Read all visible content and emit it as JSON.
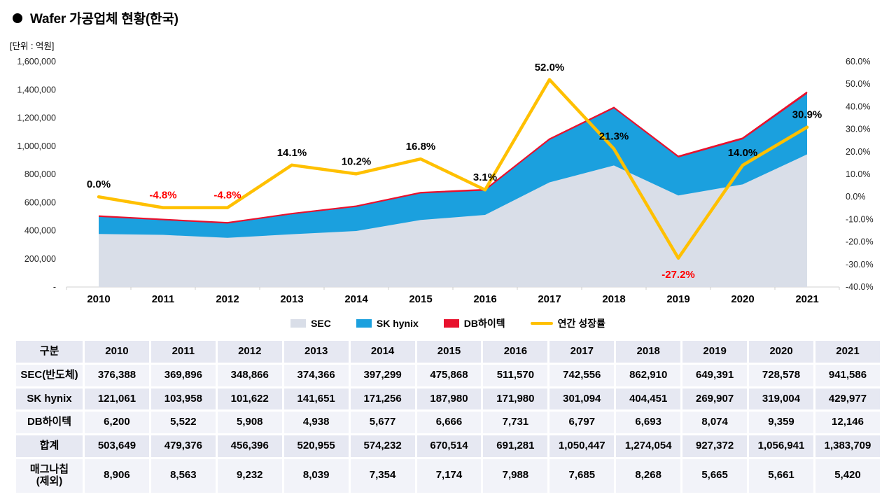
{
  "title": "Wafer 가공업체 현황(한국)",
  "unit_label": "[단위 : 억원]",
  "chart_data": {
    "type": "combo-stacked-area-line",
    "categories": [
      "2010",
      "2011",
      "2012",
      "2013",
      "2014",
      "2015",
      "2016",
      "2017",
      "2018",
      "2019",
      "2020",
      "2021"
    ],
    "area_series": [
      {
        "name": "SEC",
        "color": "#d9dee8",
        "values": [
          376388,
          369896,
          348866,
          374366,
          397299,
          475868,
          511570,
          742556,
          862910,
          649391,
          728578,
          941586
        ]
      },
      {
        "name": "SK hynix",
        "color": "#1ba0de",
        "values": [
          121061,
          103958,
          101622,
          141651,
          171256,
          187980,
          171980,
          301094,
          404451,
          269907,
          319004,
          429977
        ]
      },
      {
        "name": "DB하이텍",
        "color": "#e8112d",
        "values": [
          6200,
          5522,
          5908,
          4938,
          5677,
          6666,
          7731,
          6797,
          6693,
          8074,
          9359,
          12146
        ]
      }
    ],
    "line_series": {
      "name": "연간 성장률",
      "color": "#FFC000",
      "values": [
        0.0,
        -4.8,
        -4.8,
        14.1,
        10.2,
        16.8,
        3.1,
        52.0,
        21.3,
        -27.2,
        14.0,
        30.9
      ],
      "labels": [
        "0.0%",
        "-4.8%",
        "-4.8%",
        "14.1%",
        "10.2%",
        "16.8%",
        "3.1%",
        "52.0%",
        "21.3%",
        "-27.2%",
        "14.0%",
        "30.9%"
      ]
    },
    "left_axis": {
      "min": 0,
      "max": 1600000,
      "ticks": [
        "1,600,000",
        "1,400,000",
        "1,200,000",
        "1,000,000",
        "800,000",
        "600,000",
        "400,000",
        "200,000",
        "-"
      ]
    },
    "right_axis": {
      "min": -40,
      "max": 60,
      "ticks": [
        "60.0%",
        "50.0%",
        "40.0%",
        "30.0%",
        "20.0%",
        "10.0%",
        "0.0%",
        "-10.0%",
        "-20.0%",
        "-30.0%",
        "-40.0%"
      ]
    },
    "label_color": "#000000",
    "negative_label_color": "#ff0000",
    "grid": false,
    "legend_position": "bottom"
  },
  "legend": [
    {
      "label": "SEC",
      "color": "#d9dee8",
      "type": "box"
    },
    {
      "label": "SK hynix",
      "color": "#1ba0de",
      "type": "box"
    },
    {
      "label": "DB하이텍",
      "color": "#e8112d",
      "type": "box"
    },
    {
      "label": "연간 성장률",
      "color": "#FFC000",
      "type": "line"
    }
  ],
  "table": {
    "header": [
      "구분",
      "2010",
      "2011",
      "2012",
      "2013",
      "2014",
      "2015",
      "2016",
      "2017",
      "2018",
      "2019",
      "2020",
      "2021"
    ],
    "rows": [
      {
        "label": "SEC(반도체)",
        "values": [
          "376,388",
          "369,896",
          "348,866",
          "374,366",
          "397,299",
          "475,868",
          "511,570",
          "742,556",
          "862,910",
          "649,391",
          "728,578",
          "941,586"
        ]
      },
      {
        "label": "SK hynix",
        "values": [
          "121,061",
          "103,958",
          "101,622",
          "141,651",
          "171,256",
          "187,980",
          "171,980",
          "301,094",
          "404,451",
          "269,907",
          "319,004",
          "429,977"
        ]
      },
      {
        "label": "DB하이텍",
        "values": [
          "6,200",
          "5,522",
          "5,908",
          "4,938",
          "5,677",
          "6,666",
          "7,731",
          "6,797",
          "6,693",
          "8,074",
          "9,359",
          "12,146"
        ]
      },
      {
        "label": "합계",
        "values": [
          "503,649",
          "479,376",
          "456,396",
          "520,955",
          "574,232",
          "670,514",
          "691,281",
          "1,050,447",
          "1,274,054",
          "927,372",
          "1,056,941",
          "1,383,709"
        ]
      },
      {
        "label": "매그나칩\n(제외)",
        "values": [
          "8,906",
          "8,563",
          "9,232",
          "8,039",
          "7,354",
          "7,174",
          "7,988",
          "7,685",
          "8,268",
          "5,665",
          "5,661",
          "5,420"
        ]
      }
    ]
  }
}
